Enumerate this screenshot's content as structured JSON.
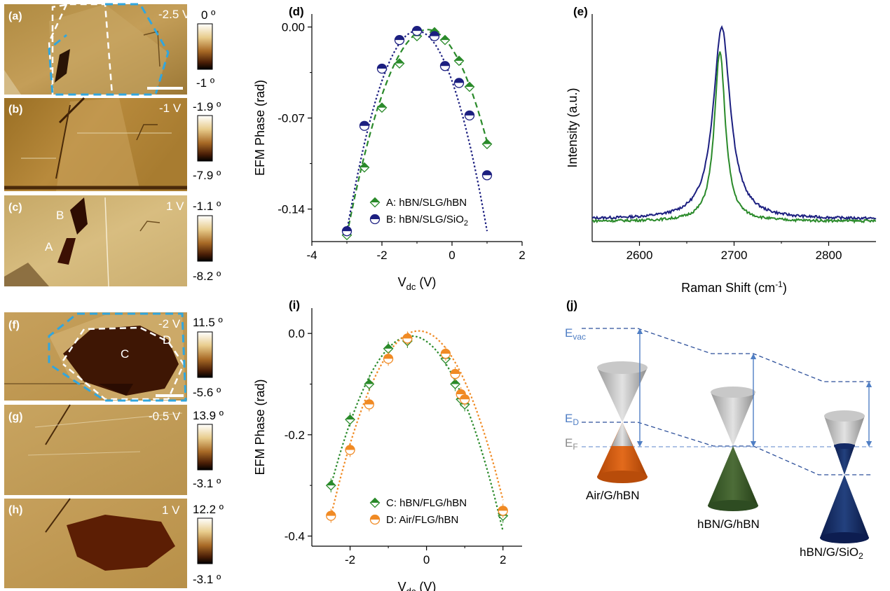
{
  "figure": {
    "panels": {
      "a": "(a)",
      "b": "(b)",
      "c": "(c)",
      "d": "(d)",
      "e": "(e)",
      "f": "(f)",
      "g": "(g)",
      "h": "(h)",
      "i": "(i)",
      "j": "(j)"
    },
    "afm_maps": [
      {
        "id": "a",
        "voltage": "-2.5 V",
        "cb_top": "0 º",
        "cb_bottom": "-1 º"
      },
      {
        "id": "b",
        "voltage": "-1 V",
        "cb_top": "-1.9 º",
        "cb_bottom": "-7.9 º"
      },
      {
        "id": "c",
        "voltage": "1 V",
        "cb_top": "-1.1 º",
        "cb_bottom": "-8.2 º"
      },
      {
        "id": "f",
        "voltage": "-2 V",
        "cb_top": "11.5 º",
        "cb_bottom": "-5.6 º"
      },
      {
        "id": "g",
        "voltage": "-0.5 V",
        "cb_top": "13.9 º",
        "cb_bottom": "-3.1 º"
      },
      {
        "id": "h",
        "voltage": "1 V",
        "cb_top": "12.2 º",
        "cb_bottom": "-3.1 º"
      }
    ],
    "map_region_labels": {
      "A": "A",
      "B": "B",
      "C": "C",
      "D": "D"
    },
    "diagram_j": {
      "e_vac": "E",
      "e_vac_sub": "vac",
      "e_d": "E",
      "e_d_sub": "D",
      "e_f": "E",
      "e_f_sub": "F",
      "structures": [
        "Air/G/hBN",
        "hBN/G/hBN",
        "hBN/G/SiO"
      ],
      "sio2_sub": "2"
    }
  },
  "chart_data": [
    {
      "id": "d",
      "type": "scatter",
      "xlabel": "V",
      "xlabel_sub": "dc",
      "xlabel_unit": " (V)",
      "ylabel": "EFM Phase (rad)",
      "xlim": [
        -4,
        2
      ],
      "ylim": [
        -0.165,
        0.01
      ],
      "xticks": [
        -4,
        -2,
        0,
        2
      ],
      "xtick_labels": [
        "-4",
        "-2",
        "0",
        "2"
      ],
      "yticks": [
        0.0,
        -0.07,
        -0.14
      ],
      "ytick_labels": [
        "0.00",
        "-0.07",
        "-0.14"
      ],
      "legend": "bottom-left",
      "series": [
        {
          "name": "A: hBN/SLG/hBN",
          "marker": "diamond",
          "color": "#2a8a2a",
          "fit": "dashed",
          "x": [
            -3,
            -2.5,
            -2,
            -1.5,
            -1,
            -0.5,
            -0.2,
            0.2,
            0.5,
            1
          ],
          "y": [
            -0.16,
            -0.108,
            -0.062,
            -0.028,
            -0.007,
            -0.004,
            -0.01,
            -0.026,
            -0.046,
            -0.09
          ],
          "fit_x": [
            -3,
            1
          ],
          "fit_peak": [
            -0.7,
            -0.002
          ]
        },
        {
          "name": "B: hBN/SLG/SiO",
          "name_sub": "2",
          "marker": "circle",
          "color": "#1c1f80",
          "fit": "dotted",
          "x": [
            -3,
            -2.5,
            -2,
            -1.5,
            -1,
            -0.5,
            -0.2,
            0.2,
            0.5,
            1
          ],
          "y": [
            -0.157,
            -0.076,
            -0.032,
            -0.01,
            -0.003,
            -0.007,
            -0.03,
            -0.043,
            -0.068,
            -0.114
          ],
          "fit_x": [
            -3,
            1
          ],
          "fit_peak": [
            -1.0,
            -0.003
          ]
        }
      ]
    },
    {
      "id": "e",
      "type": "line",
      "xlabel": "Raman Shift (cm",
      "xlabel_sup": "-1",
      "xlabel_end": ")",
      "ylabel": "Intensity (a.u.)",
      "xlim": [
        2550,
        2850
      ],
      "ylim": [
        0,
        1.1
      ],
      "xticks": [
        2600,
        2700,
        2800
      ],
      "xtick_labels": [
        "2600",
        "2700",
        "2800"
      ],
      "series": [
        {
          "color": "#1c1f80",
          "center": 2687,
          "width": 22,
          "amplitude": 0.93,
          "baseline": 0.108
        },
        {
          "color": "#2a8a2a",
          "center": 2685,
          "width": 14,
          "amplitude": 0.82,
          "baseline": 0.098
        }
      ]
    },
    {
      "id": "i",
      "type": "scatter",
      "xlabel": "V",
      "xlabel_sub": "dc",
      "xlabel_unit": " (V)",
      "ylabel": "EFM Phase (rad)",
      "xlim": [
        -3,
        2.5
      ],
      "ylim": [
        -0.42,
        0.05
      ],
      "xticks": [
        -2,
        0,
        2
      ],
      "xtick_labels": [
        "-2",
        "0",
        "2"
      ],
      "yticks": [
        0.0,
        -0.2,
        -0.4
      ],
      "ytick_labels": [
        "0.0",
        "-0.2",
        "-0.4"
      ],
      "legend": "bottom-left",
      "series": [
        {
          "name": "C: hBN/FLG/hBN",
          "marker": "diamond",
          "color": "#2a8a2a",
          "fit": "dotted",
          "x": [
            -2.5,
            -2,
            -1.5,
            -1,
            -0.5,
            0.5,
            0.75,
            0.9,
            1,
            2
          ],
          "y": [
            -0.3,
            -0.17,
            -0.1,
            -0.03,
            -0.015,
            -0.05,
            -0.1,
            -0.13,
            -0.14,
            -0.36
          ],
          "fit_x": [
            -2.5,
            2
          ],
          "fit_peak": [
            -0.4,
            -0.005
          ]
        },
        {
          "name": "D: Air/FLG/hBN",
          "marker": "circle",
          "color": "#f08a24",
          "fit": "dotted",
          "x": [
            -2.5,
            -2,
            -1.5,
            -1,
            -0.5,
            0.5,
            0.75,
            0.9,
            1,
            2
          ],
          "y": [
            -0.36,
            -0.23,
            -0.14,
            -0.05,
            -0.01,
            -0.04,
            -0.08,
            -0.12,
            -0.13,
            -0.35
          ],
          "fit_x": [
            -2.5,
            2
          ],
          "fit_peak": [
            -0.2,
            0.005
          ]
        }
      ]
    }
  ]
}
